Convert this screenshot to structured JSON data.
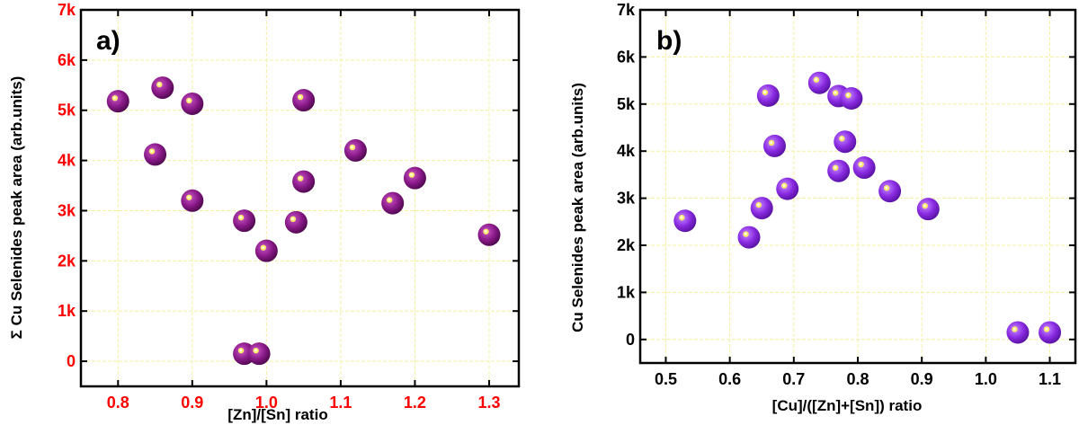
{
  "chart_data": [
    {
      "type": "scatter",
      "panel_label": "a)",
      "xlabel": "[Zn]/[Sn] ratio",
      "ylabel": "Σ Cu Selenides peak area (arb.units)",
      "xlim": [
        0.75,
        1.34
      ],
      "ylim": [
        -500,
        7000
      ],
      "xticks": [
        0.8,
        0.9,
        1.0,
        1.1,
        1.2,
        1.3
      ],
      "xtick_labels": [
        "0.8",
        "0.9",
        "1.0",
        "1.1",
        "1.2",
        "1.3"
      ],
      "yticks": [
        0,
        1000,
        2000,
        3000,
        4000,
        5000,
        6000,
        7000
      ],
      "ytick_labels": [
        "0",
        "1k",
        "2k",
        "3k",
        "4k",
        "5k",
        "6k",
        "7k"
      ],
      "tick_color": "#ff0000",
      "grid": true,
      "grid_color": "#f5f0a0",
      "marker_color": "#8b1a8a",
      "x": [
        0.8,
        0.85,
        0.86,
        0.9,
        0.9,
        0.97,
        0.97,
        0.99,
        1.0,
        1.04,
        1.05,
        1.05,
        1.12,
        1.17,
        1.2,
        1.3
      ],
      "y": [
        5180,
        4120,
        5450,
        5130,
        3200,
        2800,
        150,
        150,
        2200,
        2770,
        5200,
        3580,
        4200,
        3150,
        3650,
        2520
      ]
    },
    {
      "type": "scatter",
      "panel_label": "b)",
      "xlabel": "[Cu]/([Zn]+[Sn]) ratio",
      "ylabel": "Cu Selenides peak area  (arb.units)",
      "xlim": [
        0.46,
        1.14
      ],
      "ylim": [
        -500,
        7000
      ],
      "xticks": [
        0.5,
        0.6,
        0.7,
        0.8,
        0.9,
        1.0,
        1.1
      ],
      "xtick_labels": [
        "0.5",
        "0.6",
        "0.7",
        "0.8",
        "0.9",
        "1.0",
        "1.1"
      ],
      "yticks": [
        0,
        1000,
        2000,
        3000,
        4000,
        5000,
        6000,
        7000
      ],
      "ytick_labels": [
        "0",
        "1k",
        "2k",
        "3k",
        "4k",
        "5k",
        "6k",
        "7k"
      ],
      "tick_color": "#000000",
      "grid": true,
      "grid_color": "#f5f0a0",
      "marker_color": "#8a2be2",
      "x": [
        0.53,
        0.63,
        0.65,
        0.66,
        0.67,
        0.69,
        0.74,
        0.77,
        0.77,
        0.78,
        0.79,
        0.81,
        0.85,
        0.91,
        1.05,
        1.1
      ],
      "y": [
        2520,
        2170,
        2790,
        5180,
        4110,
        3200,
        5450,
        5170,
        3580,
        4200,
        5120,
        3650,
        3150,
        2770,
        150,
        150
      ]
    }
  ]
}
